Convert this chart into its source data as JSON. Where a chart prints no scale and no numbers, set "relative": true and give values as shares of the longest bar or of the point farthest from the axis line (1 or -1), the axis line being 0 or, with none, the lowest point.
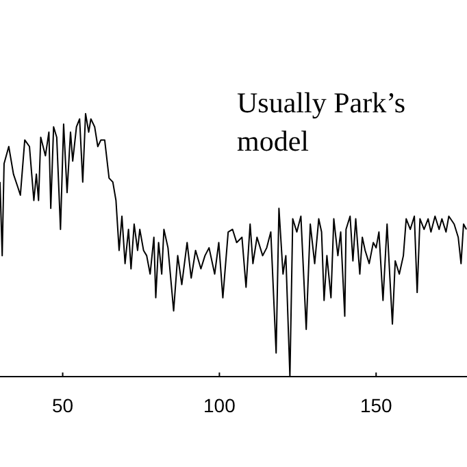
{
  "chart_data": {
    "type": "line",
    "relative": true,
    "tick_labels": "x",
    "annotations": [
      "Usually Park’s model"
    ],
    "xlim": [
      30,
      179
    ],
    "xticks": [
      50,
      100,
      150
    ],
    "series": [
      {
        "color": "#000000",
        "x": [
          30,
          30.7,
          31.3,
          32.8,
          34.3,
          35.7,
          36.5,
          37.9,
          39.4,
          40.8,
          41.6,
          42.3,
          43.0,
          44.5,
          45.6,
          46.2,
          47.1,
          48.1,
          49.3,
          50.3,
          51.4,
          52.5,
          53.2,
          54.4,
          55.4,
          56.4,
          57.3,
          58.3,
          59.0,
          60.2,
          61.2,
          62.2,
          63.4,
          64.8,
          66.0,
          67.0,
          68.0,
          68.9,
          69.9,
          71.0,
          71.8,
          72.8,
          73.9,
          74.6,
          75.8,
          76.8,
          77.9,
          79.1,
          79.7,
          80.6,
          81.6,
          82.3,
          83.6,
          85.4,
          86.7,
          88.0,
          89.7,
          91.0,
          92.4,
          94.1,
          95.4,
          96.7,
          98.5,
          99.8,
          101.1,
          102.8,
          104.2,
          105.5,
          107.2,
          108.5,
          109.8,
          110.7,
          112.0,
          113.8,
          115.1,
          116.4,
          118.1,
          119.0,
          120.3,
          121.2,
          122.5,
          123.4,
          124.7,
          126.0,
          127.7,
          129.0,
          130.4,
          131.7,
          132.6,
          133.4,
          134.3,
          135.6,
          136.5,
          137.8,
          138.7,
          140.0,
          140.4,
          141.7,
          142.6,
          143.5,
          144.8,
          145.6,
          146.5,
          147.8,
          149.1,
          150.0,
          150.9,
          152.2,
          153.5,
          154.4,
          155.2,
          156.1,
          157.4,
          158.7,
          159.6,
          160.9,
          162.2,
          163.1,
          164.0,
          165.3,
          166.6,
          167.5,
          168.8,
          170.1,
          171.0,
          172.3,
          173.2,
          174.9,
          176.2,
          177.1,
          177.9,
          178.8
        ],
        "values": [
          0.74,
          0.46,
          0.81,
          0.875,
          0.77,
          0.72,
          0.69,
          0.9,
          0.875,
          0.67,
          0.77,
          0.67,
          0.91,
          0.84,
          0.93,
          0.64,
          0.95,
          0.91,
          0.56,
          0.96,
          0.7,
          0.93,
          0.82,
          0.95,
          0.98,
          0.74,
          1.0,
          0.93,
          0.98,
          0.95,
          0.875,
          0.9,
          0.9,
          0.755,
          0.74,
          0.67,
          0.48,
          0.61,
          0.43,
          0.56,
          0.41,
          0.58,
          0.48,
          0.56,
          0.48,
          0.46,
          0.39,
          0.53,
          0.3,
          0.51,
          0.39,
          0.56,
          0.49,
          0.25,
          0.46,
          0.35,
          0.51,
          0.375,
          0.48,
          0.41,
          0.46,
          0.49,
          0.39,
          0.51,
          0.3,
          0.55,
          0.56,
          0.51,
          0.53,
          0.34,
          0.58,
          0.43,
          0.53,
          0.46,
          0.49,
          0.55,
          0.09,
          0.64,
          0.39,
          0.46,
          0,
          0.6,
          0.55,
          0.61,
          0.18,
          0.58,
          0.43,
          0.6,
          0.55,
          0.29,
          0.46,
          0.3,
          0.6,
          0.46,
          0.55,
          0.23,
          0.56,
          0.61,
          0.44,
          0.6,
          0.39,
          0.53,
          0.48,
          0.43,
          0.51,
          0.49,
          0.55,
          0.29,
          0.58,
          0.375,
          0.2,
          0.44,
          0.39,
          0.46,
          0.6,
          0.56,
          0.61,
          0.32,
          0.6,
          0.56,
          0.6,
          0.55,
          0.61,
          0.56,
          0.6,
          0.55,
          0.61,
          0.58,
          0.53,
          0.43,
          0.58,
          0.56
        ]
      }
    ]
  }
}
